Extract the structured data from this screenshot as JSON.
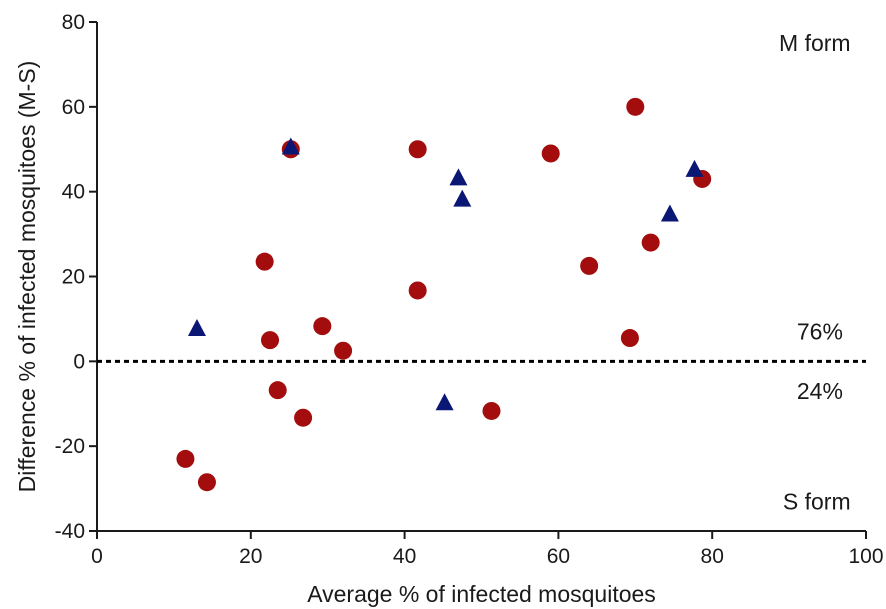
{
  "chart_data": {
    "type": "scatter",
    "title": "",
    "xlabel": "Average % of infected mosquitoes",
    "ylabel": "Difference % of infected mosquitoes (M-S)",
    "xlim": [
      0,
      100
    ],
    "ylim": [
      -40,
      80
    ],
    "x_ticks": [
      0,
      20,
      40,
      60,
      80,
      100
    ],
    "y_ticks": [
      -40,
      -20,
      0,
      20,
      40,
      60,
      80
    ],
    "grid": false,
    "reference_line": {
      "y": 0,
      "style": "dashed",
      "color": "#000000"
    },
    "annotations": [
      {
        "text": "M form",
        "x": 98,
        "y": 75,
        "anchor": "end"
      },
      {
        "text": "76%",
        "x": 97,
        "y": 7,
        "anchor": "end"
      },
      {
        "text": "24%",
        "x": 97,
        "y": -7,
        "anchor": "end"
      },
      {
        "text": "S form",
        "x": 98,
        "y": -33,
        "anchor": "end"
      }
    ],
    "series": [
      {
        "marker": "circle",
        "color": "#a30d0d",
        "points": [
          {
            "x": 11.5,
            "y": -23
          },
          {
            "x": 14.3,
            "y": -28.5
          },
          {
            "x": 21.8,
            "y": 23.5
          },
          {
            "x": 22.5,
            "y": 5
          },
          {
            "x": 23.5,
            "y": -6.8
          },
          {
            "x": 25.2,
            "y": 50
          },
          {
            "x": 26.8,
            "y": -13.3
          },
          {
            "x": 29.3,
            "y": 8.3
          },
          {
            "x": 32.0,
            "y": 2.5
          },
          {
            "x": 41.7,
            "y": 50
          },
          {
            "x": 41.7,
            "y": 16.7
          },
          {
            "x": 51.3,
            "y": -11.7
          },
          {
            "x": 59.0,
            "y": 49
          },
          {
            "x": 64.0,
            "y": 22.5
          },
          {
            "x": 69.3,
            "y": 5.5
          },
          {
            "x": 70.0,
            "y": 60
          },
          {
            "x": 72.0,
            "y": 28
          },
          {
            "x": 78.7,
            "y": 43
          }
        ]
      },
      {
        "marker": "triangle",
        "color": "#0b1774",
        "points": [
          {
            "x": 13.0,
            "y": 7.5
          },
          {
            "x": 25.2,
            "y": 50.3
          },
          {
            "x": 45.2,
            "y": -10
          },
          {
            "x": 47.0,
            "y": 43
          },
          {
            "x": 47.5,
            "y": 38
          },
          {
            "x": 74.5,
            "y": 34.5
          },
          {
            "x": 77.7,
            "y": 45
          }
        ]
      }
    ]
  }
}
